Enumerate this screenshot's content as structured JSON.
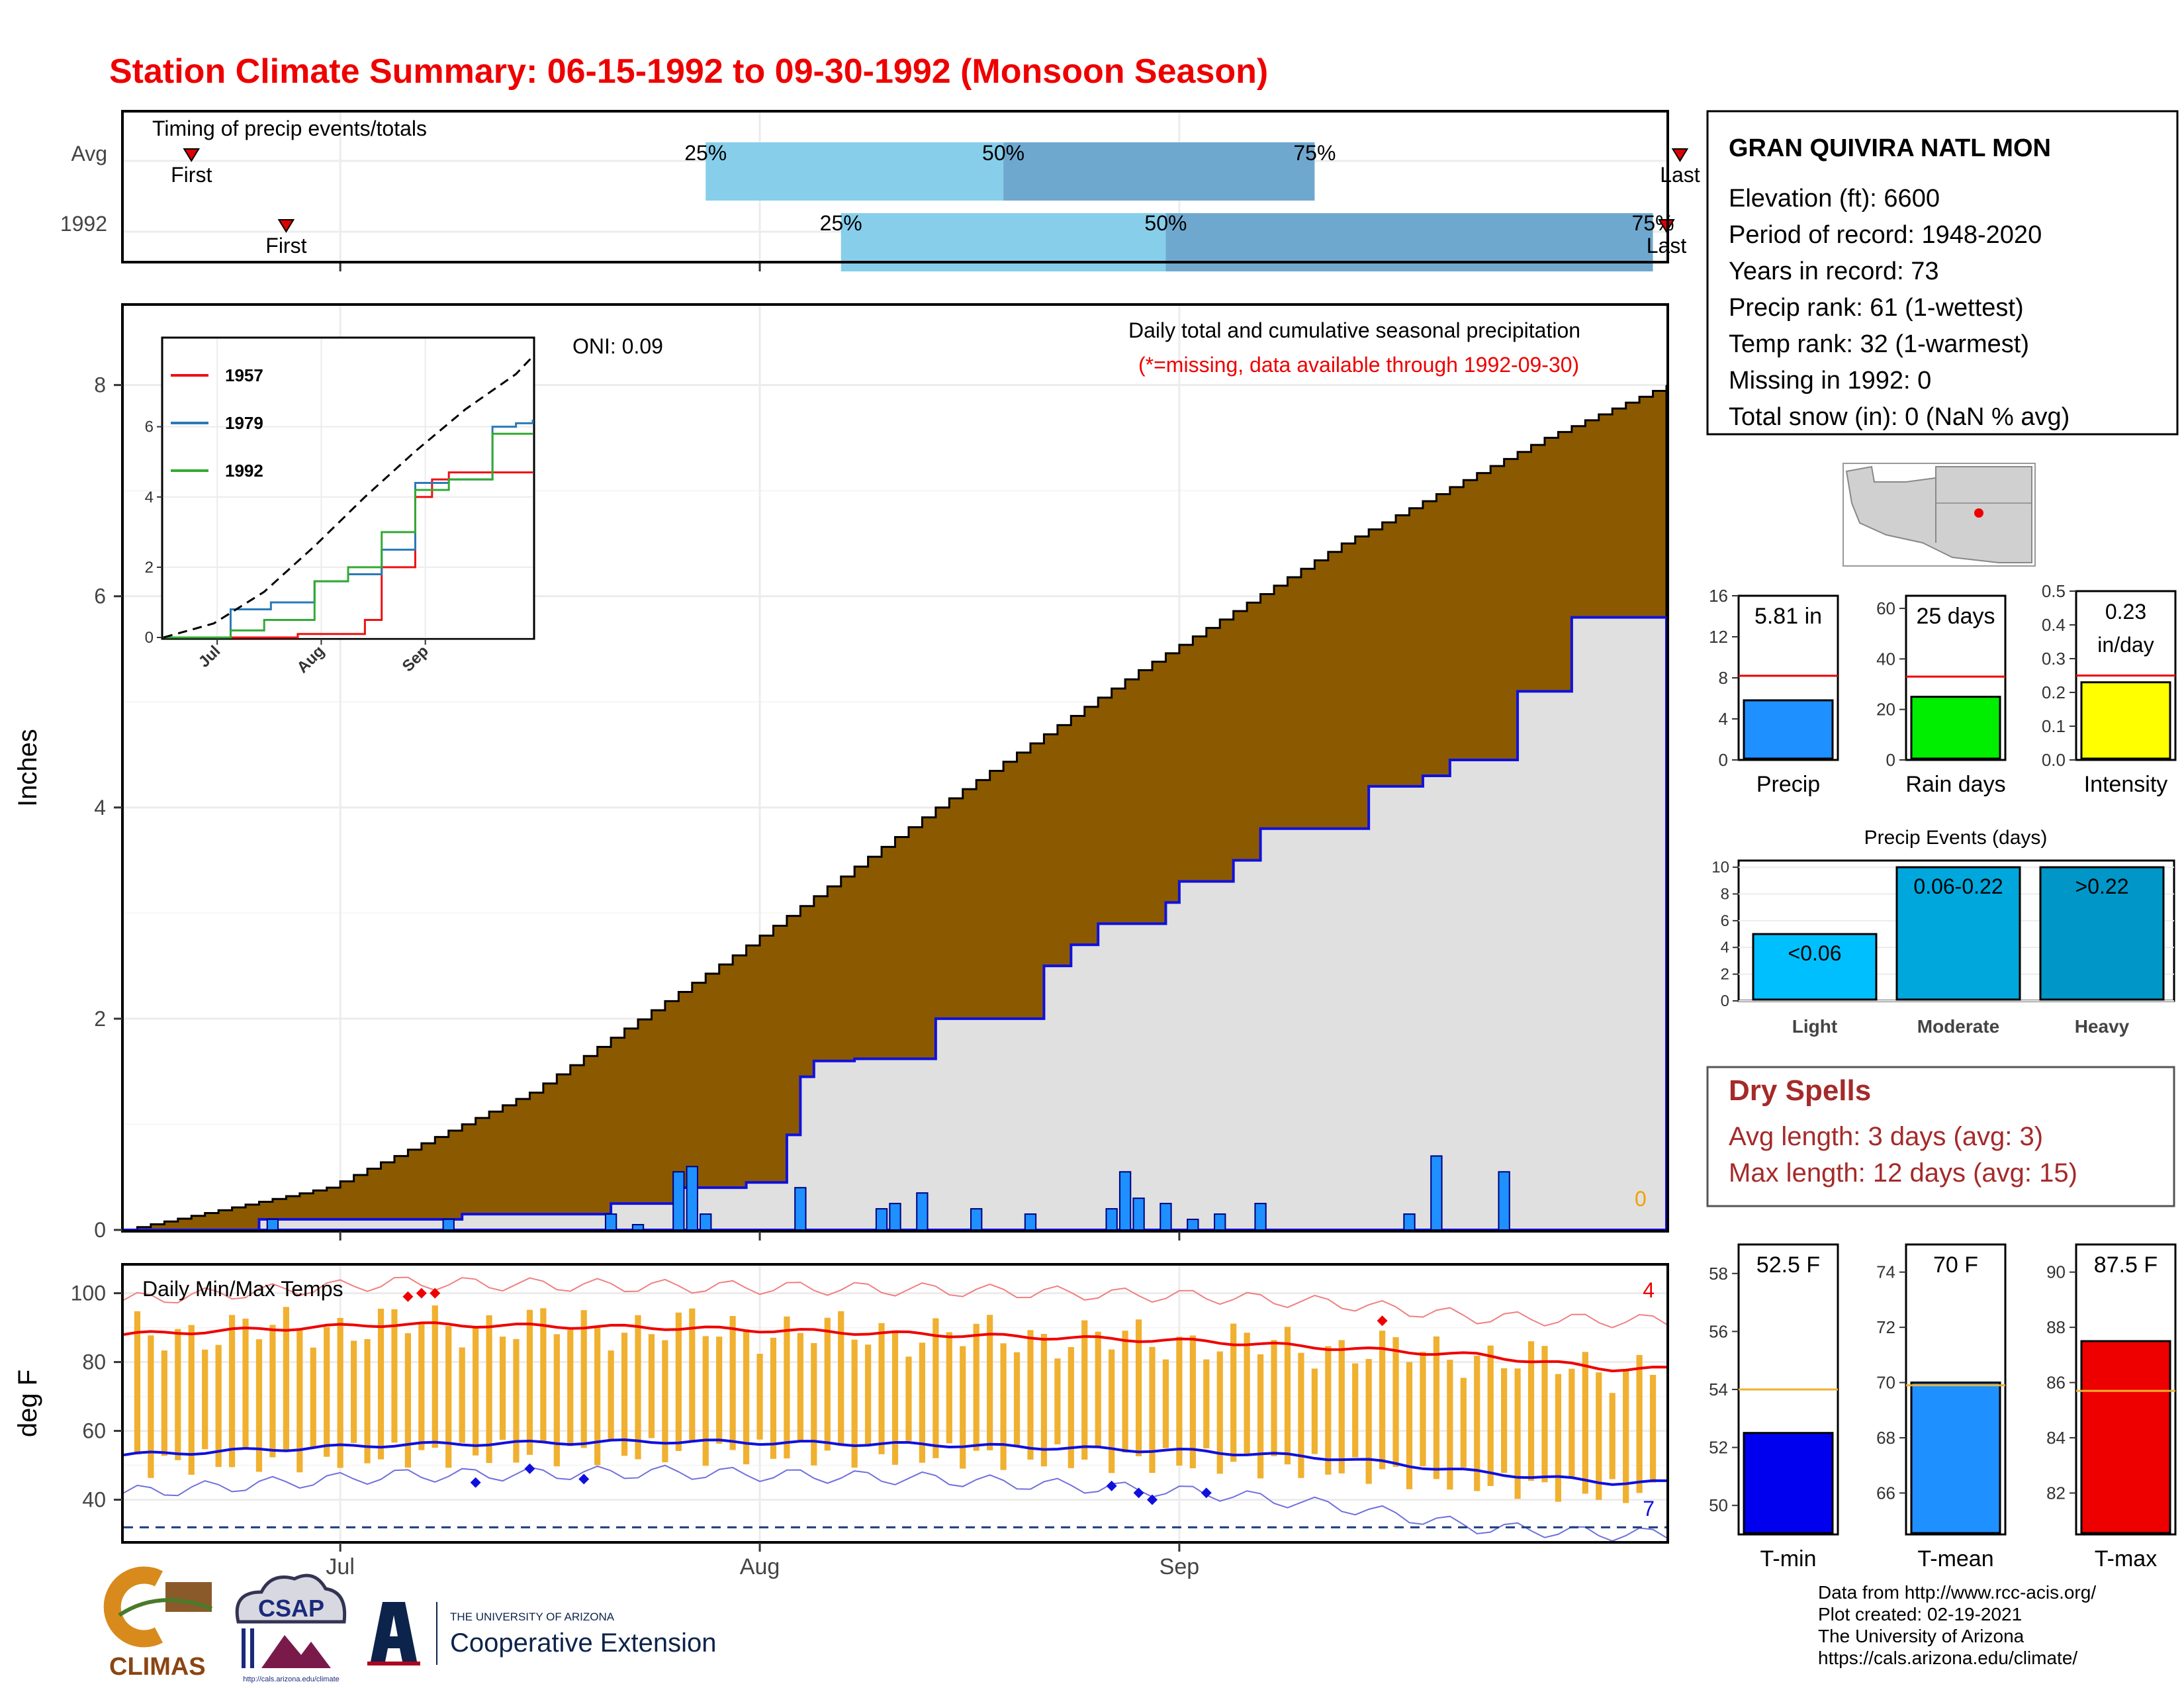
{
  "title": "Station Climate Summary: 06-15-1992 to 09-30-1992 (Monsoon Season)",
  "colors": {
    "title": "#ee0000",
    "cumulative_fill": "#8b5a00",
    "current_fill": "#e0e0e0",
    "current_line": "#1010dd",
    "daily_bar": "#1e90ff",
    "temp_bar": "#f0b030",
    "quartile_light": "#87ceeb",
    "quartile_dark": "#6fa8cf",
    "dry_spell": "#a52a2a"
  },
  "timing": {
    "title": "Timing of precip events/totals",
    "rows": [
      {
        "label": "Avg",
        "first_label": "First",
        "last_label": "Last",
        "first_day": 5,
        "q25_day": 43,
        "q50_day": 65,
        "q75_day": 88,
        "last_day": 115
      },
      {
        "label": "1992",
        "first_label": "First",
        "last_label": "Last",
        "first_day": 12,
        "q25_day": 53,
        "q50_day": 77,
        "q75_day": 113,
        "last_day": 114
      }
    ],
    "q_labels": [
      "25%",
      "50%",
      "75%"
    ]
  },
  "main": {
    "oni": "ONI: 0.09",
    "subtitle": "Daily total and cumulative seasonal precipitation",
    "note": "(*=missing, data available through 1992-09-30)",
    "missing_count": "0",
    "ylabel": "Inches",
    "yticks": [
      "0",
      "2",
      "4",
      "6",
      "8"
    ],
    "xticks": [
      "Jul",
      "Aug",
      "Sep"
    ]
  },
  "inset": {
    "legend": [
      "1957",
      "1979",
      "1992"
    ],
    "yticks": [
      "0",
      "2",
      "4",
      "6"
    ],
    "xticks": [
      "Jul",
      "Aug",
      "Sep"
    ]
  },
  "temps": {
    "title": "Daily Min/Max Temps",
    "ylabel": "deg F",
    "yticks": [
      "40",
      "60",
      "80",
      "100"
    ],
    "xticks": [
      "Jul",
      "Aug",
      "Sep"
    ],
    "record_high_count": "4",
    "record_low_count": "7",
    "freeze_line": 32
  },
  "chart_data": [
    {
      "type": "bar",
      "name": "timing",
      "categories": [
        "Avg",
        "1992"
      ],
      "x_unit": "day of season",
      "first_day": [
        5,
        12
      ],
      "q25_day": [
        43,
        53
      ],
      "q50_day": [
        65,
        77
      ],
      "q75_day": [
        88,
        113
      ],
      "last_day": [
        115,
        114
      ]
    },
    {
      "type": "area",
      "name": "precip",
      "x_unit": "day of season (0 = Jun 15)",
      "ylim": [
        0,
        8.6
      ],
      "avg_cumulative": {
        "x": [
          0,
          15,
          30,
          45,
          60,
          75,
          90,
          105,
          114
        ],
        "y": [
          0,
          0.4,
          1.3,
          2.6,
          4.0,
          5.3,
          6.5,
          7.5,
          8.0
        ]
      },
      "current_cumulative": {
        "x": [
          0,
          10,
          25,
          36,
          41,
          46,
          49,
          50,
          51,
          54,
          55,
          60,
          68,
          70,
          72,
          77,
          78,
          82,
          84,
          92,
          96,
          98,
          103,
          107,
          112,
          114
        ],
        "y": [
          0,
          0.1,
          0.15,
          0.25,
          0.4,
          0.45,
          0.9,
          1.45,
          1.6,
          1.62,
          1.62,
          2.0,
          2.5,
          2.7,
          2.9,
          3.1,
          3.3,
          3.5,
          3.8,
          4.2,
          4.3,
          4.45,
          5.1,
          5.8,
          5.8,
          5.81
        ]
      },
      "daily": {
        "x": [
          11,
          24,
          36,
          38,
          41,
          42,
          43,
          50,
          56,
          57,
          59,
          63,
          67,
          73,
          74,
          75,
          77,
          79,
          81,
          84,
          95,
          97,
          102
        ],
        "y": [
          0.1,
          0.1,
          0.15,
          0.05,
          0.55,
          0.6,
          0.15,
          0.4,
          0.2,
          0.25,
          0.35,
          0.2,
          0.15,
          0.2,
          0.55,
          0.3,
          0.25,
          0.1,
          0.15,
          0.25,
          0.15,
          0.7,
          0.55
        ]
      }
    },
    {
      "type": "line",
      "name": "inset-cumulative",
      "series": [
        {
          "name": "1957",
          "x": [
            0,
            40,
            60,
            65,
            75,
            80,
            85,
            90,
            105,
            110
          ],
          "y": [
            0,
            0.1,
            0.5,
            2.0,
            4.0,
            4.5,
            4.7,
            4.7,
            4.7,
            4.7
          ]
        },
        {
          "name": "1979",
          "x": [
            0,
            20,
            32,
            45,
            55,
            65,
            75,
            85,
            98,
            105,
            110
          ],
          "y": [
            0,
            0.8,
            1.0,
            1.6,
            1.8,
            2.5,
            4.4,
            4.5,
            6.0,
            6.1,
            6.2
          ]
        },
        {
          "name": "1992",
          "x": [
            0,
            20,
            30,
            45,
            55,
            65,
            75,
            85,
            98,
            105,
            110
          ],
          "y": [
            0,
            0.2,
            0.5,
            1.6,
            2.0,
            3.0,
            4.2,
            4.5,
            5.8,
            5.8,
            5.8
          ]
        },
        {
          "name": "avg",
          "x": [
            0,
            15,
            30,
            45,
            60,
            75,
            90,
            105,
            110
          ],
          "y": [
            0,
            0.4,
            1.3,
            2.6,
            4.0,
            5.3,
            6.5,
            7.5,
            8.0
          ]
        }
      ]
    },
    {
      "type": "bar",
      "name": "temps",
      "ylim": [
        28,
        108
      ],
      "avg_high": {
        "x": [
          0,
          20,
          40,
          60,
          80,
          90,
          100,
          110
        ],
        "y": [
          88,
          91,
          90,
          88,
          86,
          84,
          82,
          78
        ]
      },
      "avg_low": {
        "x": [
          0,
          20,
          40,
          60,
          80,
          90,
          100,
          110
        ],
        "y": [
          53,
          56,
          57,
          56,
          54,
          52,
          48,
          45
        ]
      },
      "record_high": {
        "x": [
          0,
          20,
          40,
          60,
          80,
          90,
          100,
          110
        ],
        "y": [
          98,
          103,
          102,
          101,
          99,
          97,
          93,
          92
        ]
      },
      "record_low": {
        "x": [
          0,
          20,
          40,
          60,
          80,
          90,
          100,
          110
        ],
        "y": [
          42,
          47,
          48,
          46,
          42,
          38,
          32,
          30
        ]
      },
      "record_high_days": {
        "x": [
          21,
          22,
          23,
          93
        ],
        "y": [
          99,
          100,
          100,
          92
        ]
      },
      "record_low_days": {
        "x": [
          26,
          30,
          34,
          73,
          75,
          76,
          80
        ],
        "y": [
          45,
          49,
          46,
          44,
          42,
          40,
          42
        ]
      }
    },
    {
      "type": "bar",
      "name": "precip-summary",
      "categories": [
        "Precip",
        "Rain days",
        "Intensity"
      ],
      "values": [
        5.81,
        25,
        0.23
      ],
      "averages": [
        8.2,
        33,
        0.25
      ],
      "labels": [
        "5.81 in",
        "25 days",
        "0.23",
        "in/day"
      ],
      "ylim": [
        [
          0,
          16
        ],
        [
          0,
          60
        ],
        [
          0,
          0.5
        ]
      ],
      "yticks": [
        [
          "0",
          "4",
          "8",
          "12",
          "16"
        ],
        [
          "0",
          "20",
          "40",
          "60"
        ],
        [
          "0.0",
          "0.1",
          "0.2",
          "0.3",
          "0.4",
          "0.5"
        ]
      ]
    },
    {
      "type": "bar",
      "name": "precip-events",
      "title": "Precip Events (days)",
      "categories": [
        "Light",
        "Moderate",
        "Heavy"
      ],
      "values": [
        5,
        10,
        10
      ],
      "labels": [
        "<0.06",
        "0.06-0.22",
        ">0.22"
      ],
      "ylim": [
        0,
        10.5
      ],
      "yticks": [
        "0",
        "2",
        "4",
        "6",
        "8",
        "10"
      ]
    },
    {
      "type": "bar",
      "name": "temp-summary",
      "categories": [
        "T-min",
        "T-mean",
        "T-max"
      ],
      "values": [
        52.5,
        70,
        87.5
      ],
      "averages": [
        54,
        69.9,
        85.7
      ],
      "labels": [
        "52.5 F",
        "70 F",
        "87.5 F"
      ],
      "ylim": [
        [
          49,
          59
        ],
        [
          64.5,
          75
        ],
        [
          80.5,
          91
        ]
      ],
      "yticks": [
        [
          "50",
          "52",
          "54",
          "56",
          "58"
        ],
        [
          "66",
          "68",
          "70",
          "72",
          "74"
        ],
        [
          "82",
          "84",
          "86",
          "88",
          "90"
        ]
      ]
    }
  ],
  "station": {
    "name": "GRAN QUIVIRA NATL MON",
    "lines": [
      "Elevation (ft): 6600",
      "Period of record: 1948-2020",
      "Years in record: 73",
      "Precip rank: 61 (1-wettest)",
      "Temp rank: 32 (1-warmest)",
      "Missing in 1992: 0",
      "Total snow (in): 0 (NaN % avg)"
    ]
  },
  "dry_spells": {
    "title": "Dry Spells",
    "lines": [
      "Avg length: 3 days (avg: 3)",
      "Max length: 12 days (avg: 15)"
    ]
  },
  "footer": {
    "lines": [
      "Data from http://www.rcc-acis.org/",
      "Plot created: 02-19-2021",
      "The University of Arizona",
      "https://cals.arizona.edu/climate/"
    ],
    "logo_climas": "CLIMAS",
    "logo_csap": "CSAP",
    "logo_csap_url": "http://cals.arizona.edu/climate",
    "logo_ua_small": "THE UNIVERSITY OF ARIZONA",
    "logo_ua_large": "Cooperative Extension"
  }
}
